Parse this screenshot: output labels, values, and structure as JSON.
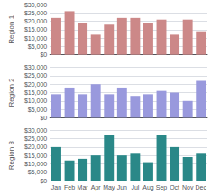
{
  "chart_data": [
    {
      "type": "bar",
      "ylabel": "Region 1",
      "categories": [
        "Jan",
        "Feb",
        "Mar",
        "Apr",
        "May",
        "Jun",
        "Jul",
        "Aug",
        "Sep",
        "Oct",
        "Nov",
        "Dec"
      ],
      "values": [
        22000,
        26000,
        19000,
        12000,
        18000,
        22000,
        22000,
        19000,
        21000,
        12000,
        21000,
        14000
      ],
      "color": "#cc8888",
      "ylim": [
        0,
        30000
      ],
      "yticks": [
        {
          "value": 0,
          "label": "$0"
        },
        {
          "value": 5000,
          "label": "$5,000"
        },
        {
          "value": 10000,
          "label": "$10,000"
        },
        {
          "value": 15000,
          "label": "$15,000"
        },
        {
          "value": 20000,
          "label": "$20,000"
        },
        {
          "value": 25000,
          "label": "$25,000"
        },
        {
          "value": 30000,
          "label": "$30,000"
        }
      ],
      "grid": true,
      "tick_labels": "y"
    },
    {
      "type": "bar",
      "ylabel": "Region 2",
      "categories": [
        "Jan",
        "Feb",
        "Mar",
        "Apr",
        "May",
        "Jun",
        "Jul",
        "Aug",
        "Sep",
        "Oct",
        "Nov",
        "Dec"
      ],
      "values": [
        14000,
        18000,
        14000,
        20000,
        14000,
        18000,
        13000,
        14000,
        16000,
        15000,
        10000,
        22000
      ],
      "color": "#9999dd",
      "ylim": [
        0,
        30000
      ],
      "yticks": [
        {
          "value": 0,
          "label": "$0"
        },
        {
          "value": 5000,
          "label": "$5,000"
        },
        {
          "value": 10000,
          "label": "$10,000"
        },
        {
          "value": 15000,
          "label": "$15,000"
        },
        {
          "value": 20000,
          "label": "$20,000"
        },
        {
          "value": 25000,
          "label": "$25,000"
        },
        {
          "value": 30000,
          "label": "$30,000"
        }
      ],
      "grid": true,
      "tick_labels": "y"
    },
    {
      "type": "bar",
      "ylabel": "Region 3",
      "categories": [
        "Jan",
        "Feb",
        "Mar",
        "Apr",
        "May",
        "Jun",
        "Jul",
        "Aug",
        "Sep",
        "Oct",
        "Nov",
        "Dec"
      ],
      "values": [
        20000,
        12000,
        13000,
        15000,
        27000,
        15000,
        16000,
        11000,
        27000,
        20000,
        14000,
        16000
      ],
      "color": "#2a8888",
      "ylim": [
        0,
        30000
      ],
      "yticks": [
        {
          "value": 0,
          "label": "$0"
        },
        {
          "value": 5000,
          "label": "$5,000"
        },
        {
          "value": 10000,
          "label": "$10,000"
        },
        {
          "value": 15000,
          "label": "$15,000"
        },
        {
          "value": 20000,
          "label": "$20,000"
        },
        {
          "value": 25000,
          "label": "$25,000"
        },
        {
          "value": 30000,
          "label": "$30,000"
        }
      ],
      "grid": true
    }
  ]
}
